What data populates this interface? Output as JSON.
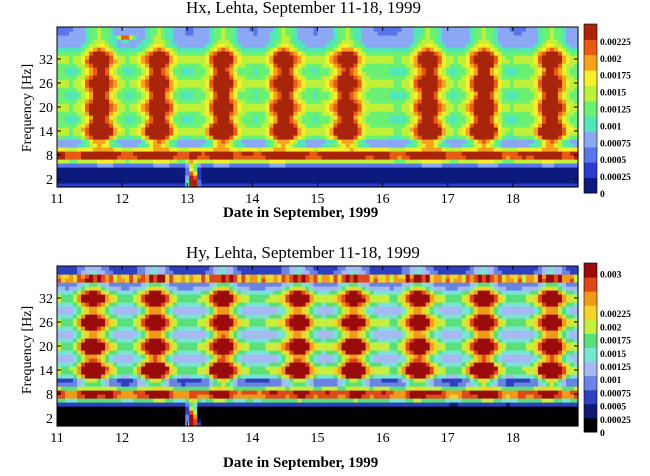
{
  "chart_data": [
    {
      "type": "heatmap",
      "title": "Hx, Lehta, September 11-18, 1999",
      "xlabel": "Date in September, 1999",
      "ylabel": "Frequency [Hz]",
      "xlim": [
        11,
        19
      ],
      "ylim": [
        0,
        40
      ],
      "xticks": [
        "11",
        "12",
        "13",
        "14",
        "15",
        "16",
        "17",
        "18"
      ],
      "yticks": [
        "2",
        "8",
        "14",
        "20",
        "26",
        "32"
      ],
      "colorbar_ticks": [
        "0",
        "0.00025",
        "0.0005",
        "0.00075",
        "0.001",
        "0.00125",
        "0.0015",
        "0.00175",
        "0.002",
        "0.00225"
      ],
      "colorbar_colors": [
        "#0c1a7e",
        "#2b3ccc",
        "#5a74ea",
        "#8aa8f4",
        "#53e6b8",
        "#6af072",
        "#bff03a",
        "#f6ee2e",
        "#f7a21c",
        "#e75b12",
        "#a8240b"
      ],
      "colorbar_max": 0.0025,
      "bands_hz": [
        8,
        14,
        20,
        26,
        32
      ],
      "daily_maxima": [
        11.65,
        12.55,
        13.55,
        14.5,
        15.45,
        16.7,
        17.55,
        18.6
      ],
      "burst_x": 13.0
    },
    {
      "type": "heatmap",
      "title": "Hy, Lehta, September 11-18, 1999",
      "xlabel": "Date in September, 1999",
      "ylabel": "Frequency [Hz]",
      "xlim": [
        11,
        19
      ],
      "ylim": [
        0,
        40
      ],
      "xticks": [
        "11",
        "12",
        "13",
        "14",
        "15",
        "16",
        "17",
        "18"
      ],
      "yticks": [
        "2",
        "8",
        "14",
        "20",
        "26",
        "32"
      ],
      "colorbar_ticks": [
        "0",
        "0.00025",
        "0.0005",
        "0.00075",
        "0.001",
        "0.00125",
        "0.0015",
        "0.00175",
        "0.002",
        "0.00225",
        "0.003"
      ],
      "colorbar_colors": [
        "#000000",
        "#101a70",
        "#2f3fc0",
        "#6a84e6",
        "#a6b9f2",
        "#78e4d4",
        "#5ae07a",
        "#c6ee3c",
        "#f3d42a",
        "#f19a1a",
        "#e0481a",
        "#9a0c0c"
      ],
      "colorbar_max": 0.0032,
      "bands_hz": [
        8,
        14,
        20,
        26,
        32
      ],
      "daily_maxima": [
        11.55,
        12.5,
        13.55,
        14.7,
        15.55,
        16.55,
        17.55,
        18.6
      ],
      "burst_x": 13.0,
      "line_hz": 37
    }
  ]
}
